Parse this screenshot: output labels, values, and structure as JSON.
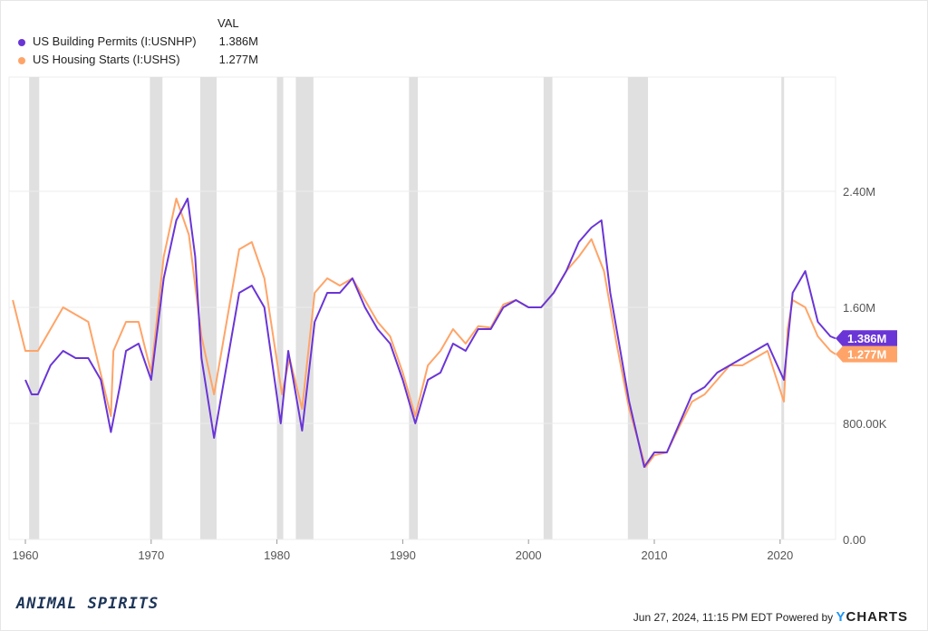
{
  "legend": {
    "header": "VAL"
  },
  "footer": {
    "timestamp": "Jun 27, 2024, 11:15 PM EDT",
    "powered": "Powered by",
    "brand_y": "Y",
    "brand_rest": "CHARTS"
  },
  "logo": "ANIMAL SPIRITS",
  "chart_data": {
    "type": "line",
    "x_ticks": [
      "1960",
      "1970",
      "1980",
      "1990",
      "2000",
      "2010",
      "2020"
    ],
    "y_ticks": [
      {
        "v": 0,
        "label": "0.00"
      },
      {
        "v": 800,
        "label": "800.00K"
      },
      {
        "v": 1600,
        "label": "1.60M"
      },
      {
        "v": 2400,
        "label": "2.40M"
      }
    ],
    "ylim": [
      0,
      3100
    ],
    "xlim": [
      1959,
      2024.6
    ],
    "grid": true,
    "legend": "top-left",
    "recessions": [
      [
        1960.3,
        1961.1
      ],
      [
        1969.9,
        1970.9
      ],
      [
        1973.9,
        1975.2
      ],
      [
        1980.0,
        1980.5
      ],
      [
        1981.5,
        1982.9
      ],
      [
        1990.5,
        1991.2
      ],
      [
        2001.2,
        2001.9
      ],
      [
        2007.9,
        2009.5
      ],
      [
        2020.1,
        2020.3
      ]
    ],
    "series": [
      {
        "name": "US Building Permits (I:USNHP)",
        "last": "1.386M",
        "color": "#6a35d6",
        "points": [
          [
            1960,
            1100
          ],
          [
            1960.5,
            1000
          ],
          [
            1961,
            1000
          ],
          [
            1962,
            1200
          ],
          [
            1963,
            1300
          ],
          [
            1964,
            1250
          ],
          [
            1965,
            1250
          ],
          [
            1966,
            1100
          ],
          [
            1966.8,
            740
          ],
          [
            1967.5,
            1050
          ],
          [
            1968,
            1300
          ],
          [
            1969,
            1350
          ],
          [
            1970,
            1100
          ],
          [
            1971,
            1800
          ],
          [
            1972,
            2200
          ],
          [
            1972.9,
            2350
          ],
          [
            1973.5,
            1950
          ],
          [
            1974,
            1250
          ],
          [
            1975,
            700
          ],
          [
            1976,
            1200
          ],
          [
            1977,
            1700
          ],
          [
            1978,
            1750
          ],
          [
            1979,
            1600
          ],
          [
            1980.3,
            800
          ],
          [
            1980.9,
            1300
          ],
          [
            1981.5,
            1000
          ],
          [
            1982,
            750
          ],
          [
            1983,
            1500
          ],
          [
            1984,
            1700
          ],
          [
            1985,
            1700
          ],
          [
            1986,
            1800
          ],
          [
            1987,
            1600
          ],
          [
            1988,
            1450
          ],
          [
            1989,
            1350
          ],
          [
            1990,
            1100
          ],
          [
            1991,
            800
          ],
          [
            1992,
            1100
          ],
          [
            1993,
            1150
          ],
          [
            1994,
            1350
          ],
          [
            1995,
            1300
          ],
          [
            1996,
            1450
          ],
          [
            1997,
            1450
          ],
          [
            1998,
            1600
          ],
          [
            1999,
            1650
          ],
          [
            2000,
            1600
          ],
          [
            2001,
            1600
          ],
          [
            2002,
            1700
          ],
          [
            2003,
            1850
          ],
          [
            2004,
            2050
          ],
          [
            2005,
            2150
          ],
          [
            2005.8,
            2200
          ],
          [
            2006.5,
            1700
          ],
          [
            2007,
            1450
          ],
          [
            2008,
            950
          ],
          [
            2009.2,
            500
          ],
          [
            2010,
            600
          ],
          [
            2011,
            600
          ],
          [
            2012,
            800
          ],
          [
            2013,
            1000
          ],
          [
            2014,
            1050
          ],
          [
            2015,
            1150
          ],
          [
            2016,
            1200
          ],
          [
            2017,
            1250
          ],
          [
            2018,
            1300
          ],
          [
            2019,
            1350
          ],
          [
            2020.3,
            1100
          ],
          [
            2021,
            1700
          ],
          [
            2022,
            1850
          ],
          [
            2023,
            1500
          ],
          [
            2024,
            1400
          ],
          [
            2024.4,
            1386
          ]
        ]
      },
      {
        "name": "US Housing Starts (I:USHS)",
        "last": "1.277M",
        "color": "#ffa468",
        "points": [
          [
            1959,
            1650
          ],
          [
            1960,
            1300
          ],
          [
            1961,
            1300
          ],
          [
            1962,
            1450
          ],
          [
            1963,
            1600
          ],
          [
            1964,
            1550
          ],
          [
            1965,
            1500
          ],
          [
            1966.8,
            850
          ],
          [
            1967,
            1300
          ],
          [
            1968,
            1500
          ],
          [
            1969,
            1500
          ],
          [
            1970,
            1150
          ],
          [
            1971,
            1950
          ],
          [
            1972,
            2350
          ],
          [
            1973,
            2100
          ],
          [
            1974,
            1400
          ],
          [
            1975,
            1000
          ],
          [
            1976,
            1500
          ],
          [
            1977,
            2000
          ],
          [
            1978,
            2050
          ],
          [
            1979,
            1800
          ],
          [
            1980.4,
            1000
          ],
          [
            1981,
            1250
          ],
          [
            1982,
            900
          ],
          [
            1983,
            1700
          ],
          [
            1984,
            1800
          ],
          [
            1985,
            1750
          ],
          [
            1986,
            1800
          ],
          [
            1987,
            1650
          ],
          [
            1988,
            1500
          ],
          [
            1989,
            1400
          ],
          [
            1990,
            1150
          ],
          [
            1991,
            850
          ],
          [
            1992,
            1200
          ],
          [
            1993,
            1300
          ],
          [
            1994,
            1450
          ],
          [
            1995,
            1350
          ],
          [
            1996,
            1470
          ],
          [
            1997,
            1460
          ],
          [
            1998,
            1620
          ],
          [
            1999,
            1650
          ],
          [
            2000,
            1600
          ],
          [
            2001,
            1600
          ],
          [
            2002,
            1700
          ],
          [
            2003,
            1850
          ],
          [
            2004,
            1950
          ],
          [
            2005,
            2070
          ],
          [
            2006,
            1850
          ],
          [
            2007,
            1350
          ],
          [
            2008,
            900
          ],
          [
            2009.3,
            500
          ],
          [
            2010,
            580
          ],
          [
            2011,
            600
          ],
          [
            2012,
            780
          ],
          [
            2013,
            950
          ],
          [
            2014,
            1000
          ],
          [
            2015,
            1100
          ],
          [
            2016,
            1200
          ],
          [
            2017,
            1200
          ],
          [
            2018,
            1250
          ],
          [
            2019,
            1300
          ],
          [
            2020.3,
            950
          ],
          [
            2020.6,
            1450
          ],
          [
            2021,
            1650
          ],
          [
            2022,
            1600
          ],
          [
            2023,
            1400
          ],
          [
            2024,
            1300
          ],
          [
            2024.4,
            1277
          ]
        ]
      }
    ]
  }
}
